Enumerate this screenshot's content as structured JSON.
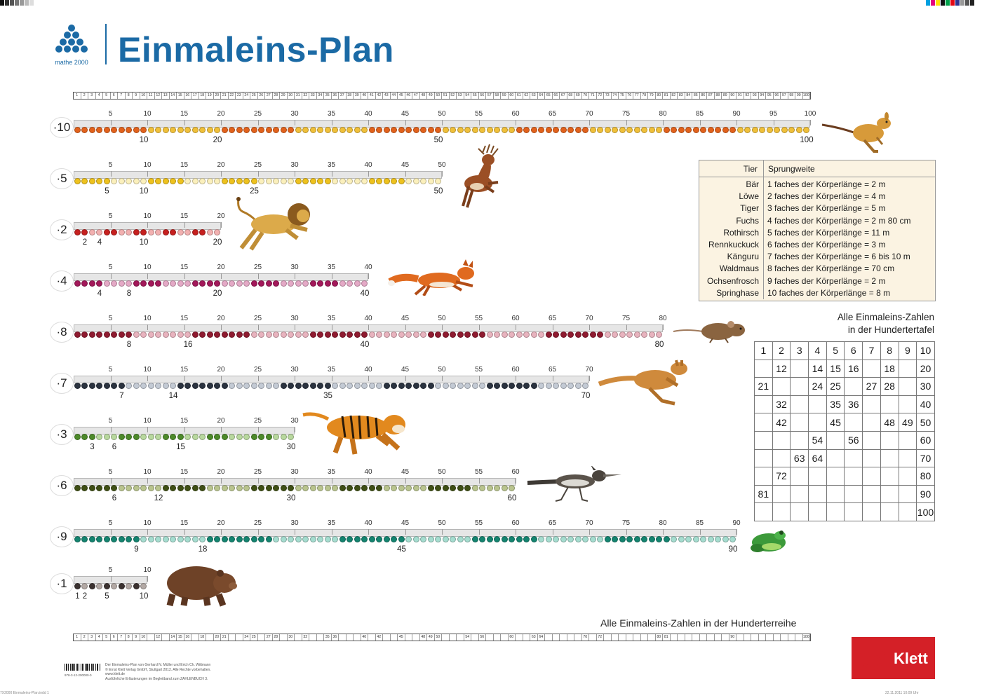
{
  "header": {
    "logo_text": "mathe 2000",
    "title": "Einmaleins-Plan"
  },
  "top_strip_numbers": [
    "1",
    "2",
    "3",
    "4",
    "5",
    "6",
    "7",
    "8",
    "9",
    "10",
    "11",
    "12",
    "13",
    "14",
    "15",
    "16",
    "17",
    "18",
    "19",
    "20",
    "21",
    "22",
    "23",
    "24",
    "25",
    "26",
    "27",
    "28",
    "29",
    "30",
    "31",
    "32",
    "33",
    "34",
    "35",
    "36",
    "37",
    "38",
    "39",
    "40",
    "41",
    "42",
    "43",
    "44",
    "45",
    "46",
    "47",
    "48",
    "49",
    "50",
    "51",
    "52",
    "53",
    "54",
    "55",
    "56",
    "57",
    "58",
    "59",
    "60",
    "61",
    "62",
    "63",
    "64",
    "65",
    "66",
    "67",
    "68",
    "69",
    "70",
    "71",
    "72",
    "73",
    "74",
    "75",
    "76",
    "77",
    "78",
    "79",
    "80",
    "81",
    "82",
    "83",
    "84",
    "85",
    "86",
    "87",
    "88",
    "89",
    "90",
    "91",
    "92",
    "93",
    "94",
    "95",
    "96",
    "97",
    "98",
    "99",
    "100"
  ],
  "bottom_strip_numbers": [
    "1",
    "2",
    "3",
    "4",
    "5",
    "6",
    "7",
    "8",
    "9",
    "10",
    "",
    "12",
    "",
    "14",
    "15",
    "16",
    "",
    "18",
    "",
    "20",
    "21",
    "",
    "",
    "24",
    "25",
    "",
    "27",
    "28",
    "",
    "30",
    "",
    "32",
    "",
    "",
    "35",
    "36",
    "",
    "",
    "",
    "40",
    "",
    "42",
    "",
    "",
    "45",
    "",
    "",
    "48",
    "49",
    "50",
    "",
    "",
    "",
    "54",
    "",
    "56",
    "",
    "",
    "",
    "60",
    "",
    "",
    "63",
    "64",
    "",
    "",
    "",
    "",
    "",
    "70",
    "",
    "72",
    "",
    "",
    "",
    "",
    "",
    "",
    "",
    "80",
    "81",
    "",
    "",
    "",
    "",
    "",
    "",
    "",
    "",
    "90",
    "",
    "",
    "",
    "",
    "",
    "",
    "",
    "",
    "",
    "100"
  ],
  "rows": [
    {
      "label": "·10",
      "factor": 10,
      "top_numbers": [
        "5",
        "10",
        "15",
        "20",
        "25",
        "30",
        "35",
        "40",
        "45",
        "50",
        "55",
        "60",
        "65",
        "70",
        "75",
        "80",
        "85",
        "90",
        "95",
        "100"
      ],
      "bottom_numbers": [
        "10",
        "20",
        "50",
        "100"
      ],
      "colors": {
        "a": "#e2621c",
        "b": "#f0c03a"
      }
    },
    {
      "label": "·5",
      "factor": 5,
      "top_numbers": [
        "5",
        "10",
        "15",
        "20",
        "25",
        "30",
        "35",
        "40",
        "45",
        "50"
      ],
      "bottom_numbers": [
        "5",
        "10",
        "25",
        "50"
      ],
      "colors": {
        "a": "#eec21e",
        "b": "#fbf0bc"
      }
    },
    {
      "label": "·2",
      "factor": 2,
      "top_numbers": [
        "5",
        "10",
        "15",
        "20"
      ],
      "bottom_numbers": [
        "2",
        "4",
        "10",
        "20"
      ],
      "colors": {
        "a": "#c6201f",
        "b": "#f2b0b0"
      }
    },
    {
      "label": "·4",
      "factor": 4,
      "top_numbers": [
        "5",
        "10",
        "15",
        "20",
        "25",
        "30",
        "35",
        "40"
      ],
      "bottom_numbers": [
        "4",
        "8",
        "20",
        "40"
      ],
      "colors": {
        "a": "#a3185a",
        "b": "#e4a9c6"
      }
    },
    {
      "label": "·8",
      "factor": 8,
      "top_numbers": [
        "5",
        "10",
        "15",
        "20",
        "25",
        "30",
        "35",
        "40",
        "45",
        "50",
        "55",
        "60",
        "65",
        "70",
        "75",
        "80"
      ],
      "bottom_numbers": [
        "8",
        "16",
        "40",
        "80"
      ],
      "colors": {
        "a": "#8f1b30",
        "b": "#e8b3be"
      }
    },
    {
      "label": "·7",
      "factor": 7,
      "top_numbers": [
        "5",
        "10",
        "15",
        "20",
        "25",
        "30",
        "35",
        "40",
        "45",
        "50",
        "55",
        "60",
        "65",
        "70"
      ],
      "bottom_numbers": [
        "7",
        "14",
        "35",
        "70"
      ],
      "colors": {
        "a": "#2b3340",
        "b": "#c3cad4"
      }
    },
    {
      "label": "·3",
      "factor": 3,
      "top_numbers": [
        "5",
        "10",
        "15",
        "20",
        "25",
        "30"
      ],
      "bottom_numbers": [
        "3",
        "6",
        "15",
        "30"
      ],
      "colors": {
        "a": "#4d8a2a",
        "b": "#b8d89e"
      }
    },
    {
      "label": "·6",
      "factor": 6,
      "top_numbers": [
        "5",
        "10",
        "15",
        "20",
        "25",
        "30",
        "35",
        "40",
        "45",
        "50",
        "55",
        "60"
      ],
      "bottom_numbers": [
        "6",
        "12",
        "30",
        "60"
      ],
      "colors": {
        "a": "#3f4f15",
        "b": "#b9c48e"
      }
    },
    {
      "label": "·9",
      "factor": 9,
      "top_numbers": [
        "5",
        "10",
        "15",
        "20",
        "25",
        "30",
        "35",
        "40",
        "45",
        "50",
        "55",
        "60",
        "65",
        "70",
        "75",
        "80",
        "85",
        "90"
      ],
      "bottom_numbers": [
        "9",
        "18",
        "45",
        "90"
      ],
      "colors": {
        "a": "#148470",
        "b": "#a5dccf"
      }
    },
    {
      "label": "·1",
      "factor": 1,
      "top_numbers": [
        "5",
        "10"
      ],
      "bottom_numbers": [
        "1",
        "2",
        "5",
        "10"
      ],
      "colors": {
        "a": "#3b3230",
        "b": "#b3a9a5"
      }
    }
  ],
  "animals": [
    {
      "name": "Springhase",
      "icon": "springhare-icon",
      "color": "#c98a2a"
    },
    {
      "name": "Rothirsch",
      "icon": "deer-icon",
      "color": "#9b4f25"
    },
    {
      "name": "Löwe",
      "icon": "lion-icon",
      "color": "#d6a23e"
    },
    {
      "name": "Fuchs",
      "icon": "fox-icon",
      "color": "#e06a1f"
    },
    {
      "name": "Waldmaus",
      "icon": "mouse-icon",
      "color": "#8a6440"
    },
    {
      "name": "Känguru",
      "icon": "kangaroo-icon",
      "color": "#cf8a3c"
    },
    {
      "name": "Tiger",
      "icon": "tiger-icon",
      "color": "#e2891e"
    },
    {
      "name": "Rennkuckuck",
      "icon": "roadrunner-icon",
      "color": "#3e3a35"
    },
    {
      "name": "Ochsenfrosch",
      "icon": "frog-icon",
      "color": "#3c9a3a"
    },
    {
      "name": "Bär",
      "icon": "bear-icon",
      "color": "#6e4227"
    }
  ],
  "jump_table": {
    "header_animal": "Tier",
    "header_distance": "Sprungweite",
    "rows": [
      {
        "animal": "Bär",
        "distance": "1 faches der Körperlänge =   2 m"
      },
      {
        "animal": "Löwe",
        "distance": "2 faches der Körperlänge =   4 m"
      },
      {
        "animal": "Tiger",
        "distance": "3 faches der Körperlänge =   5 m"
      },
      {
        "animal": "Fuchs",
        "distance": "4 faches der Körperlänge =   2 m 80 cm"
      },
      {
        "animal": "Rothirsch",
        "distance": "5 faches der Körperlänge = 11 m"
      },
      {
        "animal": "Rennkuckuck",
        "distance": "6 faches der Körperlänge =   3 m"
      },
      {
        "animal": "Känguru",
        "distance": "7 faches der Körperlänge =   6 bis 10 m"
      },
      {
        "animal": "Waldmaus",
        "distance": "8 faches der Körperlänge = 70 cm"
      },
      {
        "animal": "Ochsenfrosch",
        "distance": "9 faches der Körperlänge =   2 m"
      },
      {
        "animal": "Springhase",
        "distance": "10 faches der Körperlänge =   8 m"
      }
    ]
  },
  "hundred_board": {
    "title_line1": "Alle Einmaleins-Zahlen",
    "title_line2": "in der Hundertertafel",
    "rows": [
      [
        "1",
        "2",
        "3",
        "4",
        "5",
        "6",
        "7",
        "8",
        "9",
        "10"
      ],
      [
        "",
        "12",
        "",
        "14",
        "15",
        "16",
        "",
        "18",
        "",
        "20"
      ],
      [
        "21",
        "",
        "",
        "24",
        "25",
        "",
        "27",
        "28",
        "",
        "30"
      ],
      [
        "",
        "32",
        "",
        "",
        "35",
        "36",
        "",
        "",
        "",
        "40"
      ],
      [
        "",
        "42",
        "",
        "",
        "45",
        "",
        "",
        "48",
        "49",
        "50"
      ],
      [
        "",
        "",
        "",
        "54",
        "",
        "56",
        "",
        "",
        "",
        "60"
      ],
      [
        "",
        "",
        "63",
        "64",
        "",
        "",
        "",
        "",
        "",
        "70"
      ],
      [
        "",
        "72",
        "",
        "",
        "",
        "",
        "",
        "",
        "",
        "80"
      ],
      [
        "81",
        "",
        "",
        "",
        "",
        "",
        "",
        "",
        "",
        "90"
      ],
      [
        "",
        "",
        "",
        "",
        "",
        "",
        "",
        "",
        "",
        "100"
      ]
    ]
  },
  "bottom_caption": "Alle Einmaleins-Zahlen in der Hunderterreihe",
  "publisher": {
    "name": "Klett",
    "brand_color": "#d42027"
  },
  "footer": {
    "barcode_number": "978-3-12-200000-0",
    "lines": [
      "Der Einmaleins-Plan von Gerhard N. Müller und Erich Ch. Wittmann",
      "© Ernst Klett Verlag GmbH, Stuttgart 2012. Alle Rechte vorbehalten. www.klett.de",
      "Ausführliche Erläuterungen im Begleitband zum ZAHLENBUCH 3."
    ]
  },
  "imprint_left": "7X2000 Einmaleins-Plan.indd   1",
  "imprint_right": "22.11.2011   10:09 Uhr"
}
